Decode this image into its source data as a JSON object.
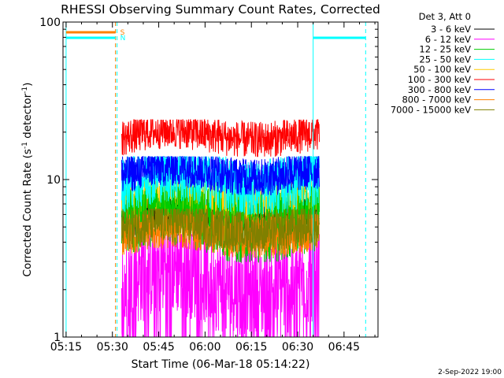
{
  "chart_data": {
    "type": "line",
    "title": "RHESSI Observing Summary Count Rates, Corrected",
    "xlabel": "Start Time (06-Mar-18 05:14:22)",
    "ylabel": "Corrected Count Rate (s⁻¹ detector⁻¹)",
    "ylabel_parts": {
      "base": "Corrected Count Rate (s",
      "exp1": "-1",
      "mid": " detector",
      "exp2": "-1",
      "end": ")"
    },
    "yscale": "log",
    "ylim": [
      1,
      100
    ],
    "xlim_minutes": [
      5.25,
      6.933
    ],
    "x_ticks": [
      "05:15",
      "05:30",
      "05:45",
      "06:00",
      "06:15",
      "06:30",
      "06:45"
    ],
    "y_ticks": [
      "1",
      "10",
      "100"
    ],
    "legend_header": "Det 3, Att 0",
    "legend_placement": "right",
    "footer_date": "2-Sep-2022 19:00",
    "flags": {
      "saa_label": "S",
      "night_label": "N",
      "saa_interval": [
        "05:15",
        "05:31"
      ],
      "night_intervals": [
        [
          "05:15",
          "05:31"
        ],
        [
          "06:35",
          "06:52"
        ]
      ],
      "vertical_lines_solid": [
        "05:15",
        "06:35"
      ],
      "vertical_lines_dashed": [
        "05:31",
        "06:52"
      ]
    },
    "data_window": [
      "05:33",
      "06:37"
    ],
    "series": [
      {
        "name": "3 - 6 keV",
        "color": "#000000",
        "level_range": [
          4.2,
          7.5
        ]
      },
      {
        "name": "6 - 12 keV",
        "color": "#ff00ff",
        "level_range": [
          1.0,
          4.5
        ]
      },
      {
        "name": "12 - 25 keV",
        "color": "#00cc00",
        "level_range": [
          3.0,
          9.0
        ]
      },
      {
        "name": "25 - 50 keV",
        "color": "#00ffff",
        "level_range": [
          6.0,
          14.0
        ]
      },
      {
        "name": "50 - 100 keV",
        "color": "#ffcc00",
        "level_range": [
          5.0,
          10.0
        ]
      },
      {
        "name": "100 - 300 keV",
        "color": "#ff0000",
        "level_range": [
          14.0,
          24.0
        ]
      },
      {
        "name": "300 - 800 keV",
        "color": "#0000ff",
        "level_range": [
          8.0,
          14.0
        ]
      },
      {
        "name": "800 - 7000 keV",
        "color": "#ff8000",
        "level_range": [
          3.2,
          6.0
        ]
      },
      {
        "name": "7000 - 15000 keV",
        "color": "#808000",
        "level_range": [
          3.5,
          6.5
        ]
      }
    ]
  }
}
